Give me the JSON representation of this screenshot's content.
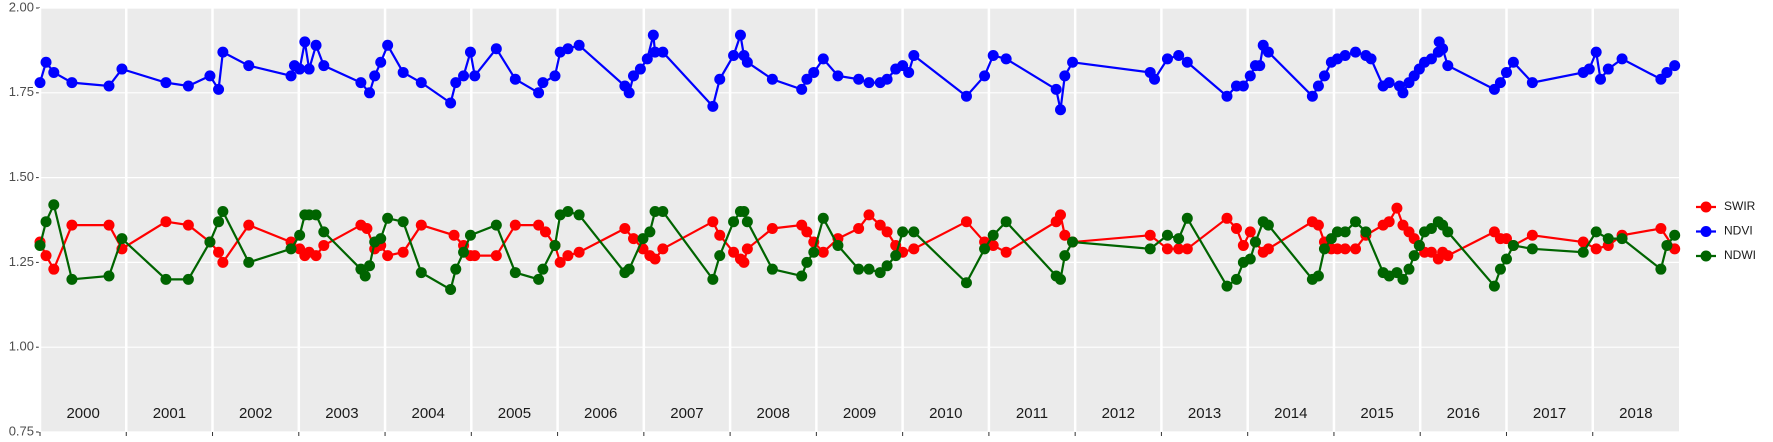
{
  "chart_data": {
    "type": "line",
    "xlim": [
      2000,
      2019
    ],
    "xticks": [
      2000,
      2001,
      2002,
      2003,
      2004,
      2005,
      2006,
      2007,
      2008,
      2009,
      2010,
      2011,
      2012,
      2013,
      2014,
      2015,
      2016,
      2017,
      2018
    ],
    "ylim": [
      0.75,
      2.0
    ],
    "yticks": [
      {
        "value": 0.75,
        "label": "0.75"
      },
      {
        "value": 1.0,
        "label": "1.00"
      },
      {
        "value": 1.25,
        "label": "1.25"
      },
      {
        "value": 1.5,
        "label": "1.50"
      },
      {
        "value": 1.75,
        "label": "1.75"
      },
      {
        "value": 2.0,
        "label": "2.00"
      }
    ],
    "grid": true,
    "legend": "right",
    "series": [
      {
        "name": "SWIR",
        "color": "#ff0000",
        "x": [
          2000.0,
          2000.07,
          2000.16,
          2000.37,
          2000.8,
          2000.95,
          2001.46,
          2001.72,
          2001.97,
          2002.07,
          2002.12,
          2002.42,
          2002.91,
          2003.01,
          2003.07,
          2003.12,
          2003.2,
          2003.29,
          2003.72,
          2003.79,
          2003.88,
          2003.95,
          2004.03,
          2004.21,
          2004.42,
          2004.8,
          2004.91,
          2004.99,
          2005.04,
          2005.29,
          2005.51,
          2005.78,
          2005.86,
          2005.97,
          2006.03,
          2006.12,
          2006.25,
          2006.78,
          2006.88,
          2006.99,
          2007.07,
          2007.13,
          2007.22,
          2007.8,
          2007.88,
          2008.04,
          2008.12,
          2008.16,
          2008.2,
          2008.49,
          2008.83,
          2008.89,
          2008.97,
          2009.08,
          2009.25,
          2009.49,
          2009.61,
          2009.74,
          2009.82,
          2009.92,
          2010.0,
          2010.13,
          2010.74,
          2010.95,
          2011.05,
          2011.2,
          2011.78,
          2011.83,
          2011.88,
          2011.97,
          2012.87,
          2013.07,
          2013.2,
          2013.3,
          2013.76,
          2013.87,
          2013.95,
          2014.03,
          2014.09,
          2014.18,
          2014.24,
          2014.75,
          2014.82,
          2014.89,
          2014.97,
          2015.04,
          2015.13,
          2015.25,
          2015.37,
          2015.57,
          2015.64,
          2015.73,
          2015.8,
          2015.87,
          2015.93,
          2015.99,
          2016.05,
          2016.13,
          2016.21,
          2016.26,
          2016.32,
          2016.86,
          2016.93,
          2017.0,
          2017.08,
          2017.3,
          2017.89,
          2018.04,
          2018.18,
          2018.34,
          2018.79,
          2018.95
        ],
        "values": [
          1.31,
          1.27,
          1.23,
          1.36,
          1.36,
          1.29,
          1.37,
          1.36,
          1.31,
          1.28,
          1.25,
          1.36,
          1.31,
          1.29,
          1.27,
          1.28,
          1.27,
          1.3,
          1.36,
          1.35,
          1.29,
          1.3,
          1.27,
          1.28,
          1.36,
          1.33,
          1.3,
          1.27,
          1.27,
          1.27,
          1.36,
          1.36,
          1.34,
          1.3,
          1.25,
          1.27,
          1.28,
          1.35,
          1.32,
          1.29,
          1.27,
          1.26,
          1.29,
          1.37,
          1.33,
          1.28,
          1.26,
          1.25,
          1.29,
          1.35,
          1.36,
          1.34,
          1.31,
          1.28,
          1.32,
          1.35,
          1.39,
          1.36,
          1.34,
          1.3,
          1.28,
          1.29,
          1.37,
          1.31,
          1.3,
          1.28,
          1.37,
          1.39,
          1.33,
          1.31,
          1.33,
          1.29,
          1.29,
          1.29,
          1.38,
          1.35,
          1.3,
          1.34,
          1.31,
          1.28,
          1.29,
          1.37,
          1.36,
          1.31,
          1.29,
          1.29,
          1.29,
          1.29,
          1.33,
          1.36,
          1.37,
          1.41,
          1.36,
          1.34,
          1.32,
          1.3,
          1.28,
          1.28,
          1.26,
          1.28,
          1.27,
          1.34,
          1.32,
          1.32,
          1.3,
          1.33,
          1.31,
          1.29,
          1.3,
          1.33,
          1.35,
          1.29
        ]
      },
      {
        "name": "NDVI",
        "color": "#0000ff",
        "x": [
          2000.0,
          2000.07,
          2000.16,
          2000.37,
          2000.8,
          2000.95,
          2001.46,
          2001.72,
          2001.97,
          2002.07,
          2002.12,
          2002.42,
          2002.91,
          2002.95,
          2003.01,
          2003.07,
          2003.12,
          2003.2,
          2003.29,
          2003.72,
          2003.82,
          2003.88,
          2003.95,
          2004.03,
          2004.21,
          2004.42,
          2004.76,
          2004.82,
          2004.91,
          2004.99,
          2005.04,
          2005.29,
          2005.51,
          2005.78,
          2005.83,
          2005.97,
          2006.03,
          2006.12,
          2006.25,
          2006.78,
          2006.83,
          2006.88,
          2006.96,
          2007.04,
          2007.11,
          2007.13,
          2007.22,
          2007.8,
          2007.88,
          2008.04,
          2008.12,
          2008.16,
          2008.2,
          2008.49,
          2008.83,
          2008.89,
          2008.97,
          2009.08,
          2009.25,
          2009.49,
          2009.61,
          2009.74,
          2009.82,
          2009.92,
          2010.0,
          2010.07,
          2010.13,
          2010.74,
          2010.95,
          2011.05,
          2011.2,
          2011.78,
          2011.83,
          2011.88,
          2011.97,
          2012.87,
          2012.92,
          2013.07,
          2013.2,
          2013.3,
          2013.76,
          2013.87,
          2013.95,
          2014.03,
          2014.09,
          2014.14,
          2014.18,
          2014.24,
          2014.75,
          2014.82,
          2014.89,
          2014.97,
          2015.04,
          2015.13,
          2015.25,
          2015.37,
          2015.43,
          2015.57,
          2015.64,
          2015.76,
          2015.8,
          2015.87,
          2015.93,
          2015.99,
          2016.05,
          2016.13,
          2016.21,
          2016.22,
          2016.26,
          2016.32,
          2016.86,
          2016.93,
          2017.0,
          2017.08,
          2017.3,
          2017.89,
          2017.96,
          2018.04,
          2018.09,
          2018.18,
          2018.34,
          2018.79,
          2018.86,
          2018.95
        ],
        "values": [
          1.78,
          1.84,
          1.81,
          1.78,
          1.77,
          1.82,
          1.78,
          1.77,
          1.8,
          1.76,
          1.87,
          1.83,
          1.8,
          1.83,
          1.82,
          1.9,
          1.82,
          1.89,
          1.83,
          1.78,
          1.75,
          1.8,
          1.84,
          1.89,
          1.81,
          1.78,
          1.72,
          1.78,
          1.8,
          1.87,
          1.8,
          1.88,
          1.79,
          1.75,
          1.78,
          1.8,
          1.87,
          1.88,
          1.89,
          1.77,
          1.75,
          1.8,
          1.82,
          1.85,
          1.92,
          1.87,
          1.87,
          1.71,
          1.79,
          1.86,
          1.92,
          1.86,
          1.84,
          1.79,
          1.76,
          1.79,
          1.81,
          1.85,
          1.8,
          1.79,
          1.78,
          1.78,
          1.79,
          1.82,
          1.83,
          1.81,
          1.86,
          1.74,
          1.8,
          1.86,
          1.85,
          1.76,
          1.7,
          1.8,
          1.84,
          1.81,
          1.79,
          1.85,
          1.86,
          1.84,
          1.74,
          1.77,
          1.77,
          1.8,
          1.83,
          1.83,
          1.89,
          1.87,
          1.74,
          1.77,
          1.8,
          1.84,
          1.85,
          1.86,
          1.87,
          1.86,
          1.85,
          1.77,
          1.78,
          1.77,
          1.75,
          1.78,
          1.8,
          1.82,
          1.84,
          1.85,
          1.87,
          1.9,
          1.88,
          1.83,
          1.76,
          1.78,
          1.81,
          1.84,
          1.78,
          1.81,
          1.82,
          1.87,
          1.79,
          1.82,
          1.85,
          1.79,
          1.81,
          1.83
        ]
      },
      {
        "name": "NDWI",
        "color": "#006400",
        "x": [
          2000.0,
          2000.07,
          2000.16,
          2000.37,
          2000.8,
          2000.95,
          2001.46,
          2001.72,
          2001.97,
          2002.07,
          2002.12,
          2002.42,
          2002.91,
          2003.01,
          2003.07,
          2003.12,
          2003.2,
          2003.29,
          2003.72,
          2003.77,
          2003.82,
          2003.88,
          2003.95,
          2004.03,
          2004.21,
          2004.42,
          2004.76,
          2004.82,
          2004.91,
          2004.99,
          2005.29,
          2005.51,
          2005.78,
          2005.83,
          2005.97,
          2006.03,
          2006.12,
          2006.25,
          2006.78,
          2006.83,
          2006.99,
          2007.07,
          2007.13,
          2007.22,
          2007.8,
          2007.88,
          2008.04,
          2008.12,
          2008.16,
          2008.2,
          2008.49,
          2008.83,
          2008.89,
          2008.97,
          2009.08,
          2009.25,
          2009.49,
          2009.61,
          2009.74,
          2009.82,
          2009.92,
          2010.0,
          2010.13,
          2010.74,
          2010.95,
          2011.05,
          2011.2,
          2011.78,
          2011.83,
          2011.88,
          2011.97,
          2012.87,
          2013.07,
          2013.2,
          2013.3,
          2013.76,
          2013.87,
          2013.95,
          2014.03,
          2014.09,
          2014.18,
          2014.24,
          2014.75,
          2014.82,
          2014.89,
          2014.97,
          2015.04,
          2015.13,
          2015.25,
          2015.37,
          2015.57,
          2015.64,
          2015.73,
          2015.8,
          2015.87,
          2015.93,
          2015.99,
          2016.05,
          2016.13,
          2016.21,
          2016.26,
          2016.32,
          2016.86,
          2016.93,
          2017.0,
          2017.08,
          2017.3,
          2017.89,
          2018.04,
          2018.18,
          2018.34,
          2018.79,
          2018.86,
          2018.95
        ],
        "values": [
          1.3,
          1.37,
          1.42,
          1.2,
          1.21,
          1.32,
          1.2,
          1.2,
          1.31,
          1.37,
          1.4,
          1.25,
          1.29,
          1.33,
          1.39,
          1.39,
          1.39,
          1.34,
          1.23,
          1.21,
          1.24,
          1.31,
          1.32,
          1.38,
          1.37,
          1.22,
          1.17,
          1.23,
          1.28,
          1.33,
          1.36,
          1.22,
          1.2,
          1.23,
          1.3,
          1.39,
          1.4,
          1.39,
          1.22,
          1.23,
          1.32,
          1.34,
          1.4,
          1.4,
          1.2,
          1.27,
          1.37,
          1.4,
          1.4,
          1.37,
          1.23,
          1.21,
          1.25,
          1.28,
          1.38,
          1.3,
          1.23,
          1.23,
          1.22,
          1.24,
          1.27,
          1.34,
          1.34,
          1.19,
          1.29,
          1.33,
          1.37,
          1.21,
          1.2,
          1.27,
          1.31,
          1.29,
          1.33,
          1.32,
          1.38,
          1.18,
          1.2,
          1.25,
          1.26,
          1.31,
          1.37,
          1.36,
          1.2,
          1.21,
          1.29,
          1.32,
          1.34,
          1.34,
          1.37,
          1.34,
          1.22,
          1.21,
          1.22,
          1.2,
          1.23,
          1.27,
          1.3,
          1.34,
          1.35,
          1.37,
          1.36,
          1.34,
          1.18,
          1.23,
          1.26,
          1.3,
          1.29,
          1.28,
          1.34,
          1.32,
          1.32,
          1.23,
          1.3,
          1.33
        ]
      }
    ]
  }
}
